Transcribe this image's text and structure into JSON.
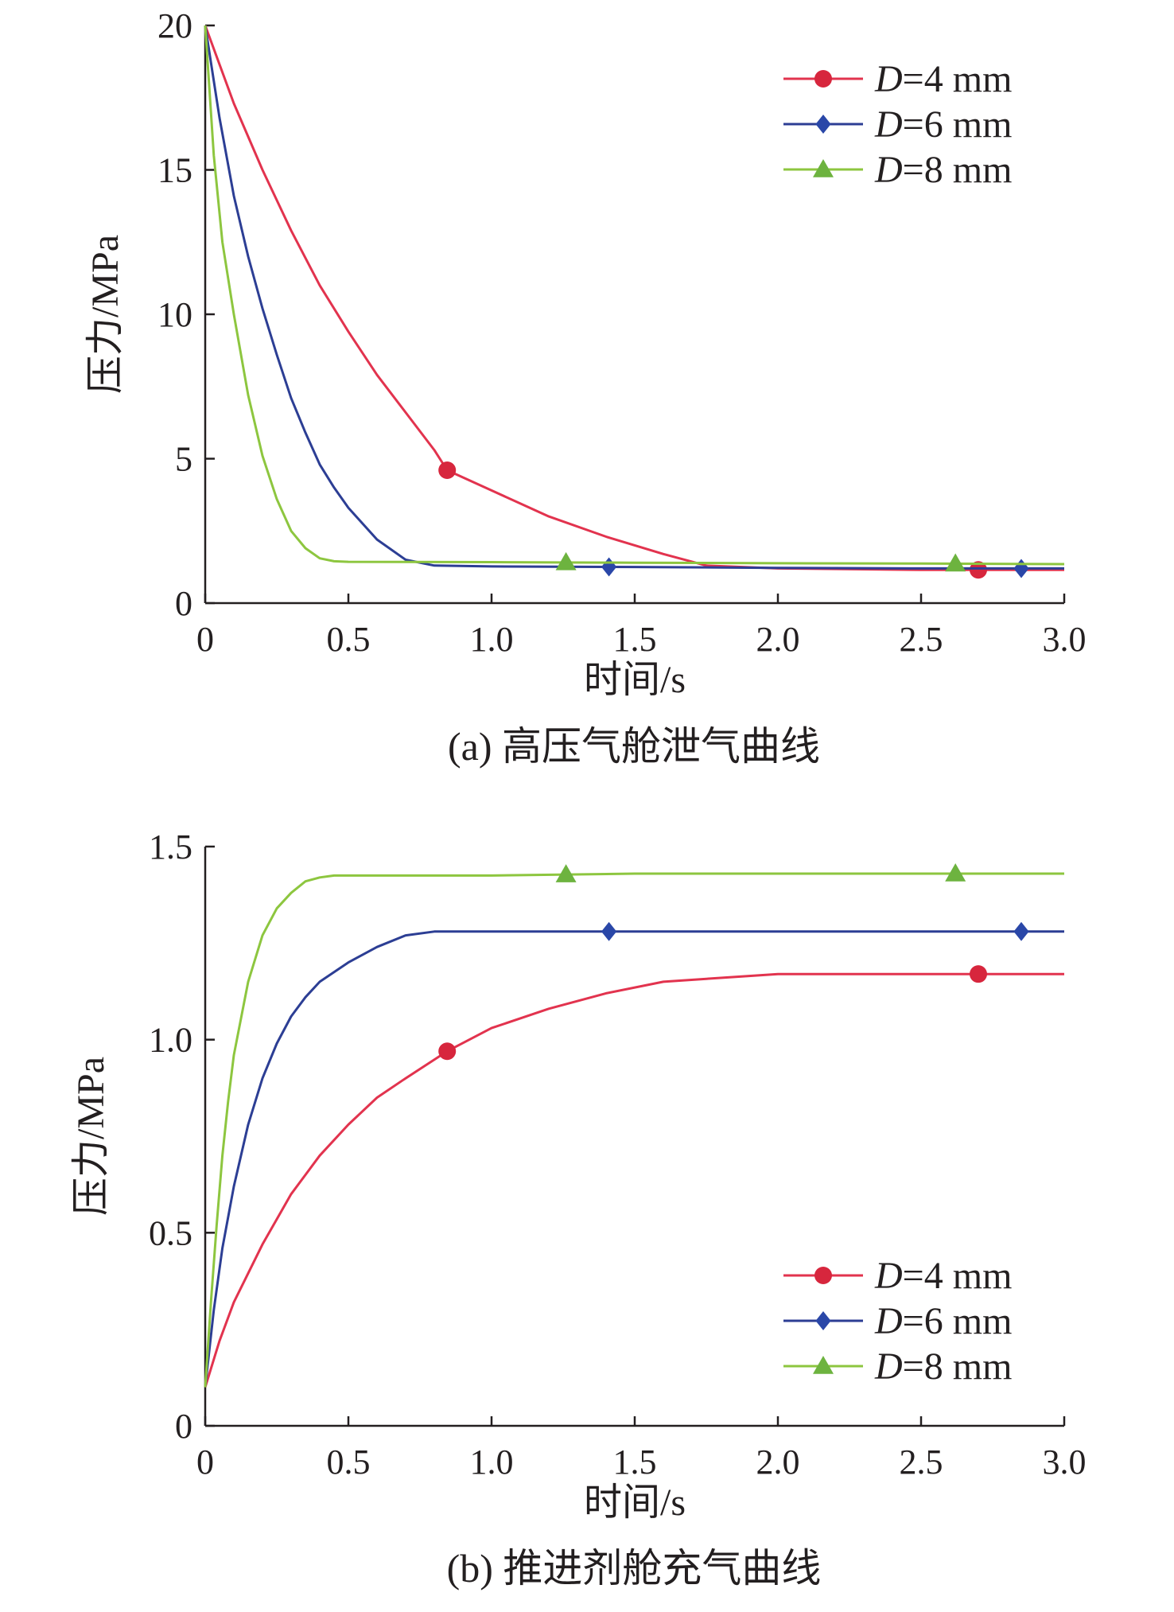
{
  "chart_data": [
    {
      "type": "line",
      "caption": "(a) 高压气舱泄气曲线",
      "xlabel": "时间/s",
      "ylabel": "压力/MPa",
      "xlim": [
        0,
        3.0
      ],
      "ylim": [
        0,
        20
      ],
      "xticks": [
        "0",
        "0.5",
        "1.0",
        "1.5",
        "2.0",
        "2.5",
        "3.0"
      ],
      "yticks": [
        "0",
        "5",
        "10",
        "15",
        "20"
      ],
      "grid": false,
      "legend_position": "top-right",
      "series": [
        {
          "name_italic": "D",
          "name_rest": "=4 mm",
          "color": "#e2334e",
          "marker": "circle",
          "marker_color": "#d7263d",
          "x": [
            0,
            0.1,
            0.2,
            0.3,
            0.4,
            0.5,
            0.6,
            0.7,
            0.8,
            0.845,
            1.0,
            1.2,
            1.4,
            1.6,
            1.75,
            2.0,
            2.5,
            3.0
          ],
          "y": [
            20,
            17.3,
            15.0,
            12.9,
            11.0,
            9.4,
            7.9,
            6.6,
            5.3,
            4.6,
            3.9,
            3.0,
            2.3,
            1.7,
            1.3,
            1.2,
            1.15,
            1.15
          ],
          "markers_x": [
            0.845,
            2.7
          ]
        },
        {
          "name_italic": "D",
          "name_rest": "=6 mm",
          "color": "#2c3e94",
          "marker": "diamond",
          "marker_color": "#2a47a8",
          "x": [
            0,
            0.05,
            0.1,
            0.15,
            0.2,
            0.25,
            0.3,
            0.35,
            0.4,
            0.45,
            0.5,
            0.6,
            0.7,
            0.8,
            1.0,
            1.5,
            2.0,
            2.5,
            3.0
          ],
          "y": [
            20,
            16.8,
            14.1,
            12.0,
            10.2,
            8.6,
            7.1,
            5.9,
            4.8,
            4.0,
            3.3,
            2.2,
            1.5,
            1.3,
            1.27,
            1.25,
            1.22,
            1.2,
            1.2
          ],
          "markers_x": [
            1.41,
            2.85
          ]
        },
        {
          "name_italic": "D",
          "name_rest": "=8 mm",
          "color": "#8dc63f",
          "marker": "triangle",
          "marker_color": "#6db33f",
          "x": [
            0,
            0.03,
            0.06,
            0.1,
            0.15,
            0.2,
            0.25,
            0.3,
            0.35,
            0.4,
            0.45,
            0.5,
            1.0,
            1.5,
            2.0,
            2.5,
            3.0
          ],
          "y": [
            20,
            15.5,
            12.5,
            10.0,
            7.2,
            5.1,
            3.6,
            2.5,
            1.9,
            1.55,
            1.45,
            1.43,
            1.42,
            1.4,
            1.38,
            1.37,
            1.35
          ],
          "markers_x": [
            1.26,
            2.62
          ]
        }
      ]
    },
    {
      "type": "line",
      "caption": "(b) 推进剂舱充气曲线",
      "xlabel": "时间/s",
      "ylabel": "压力/MPa",
      "xlim": [
        0,
        3.0
      ],
      "ylim": [
        0,
        1.5
      ],
      "xticks": [
        "0",
        "0.5",
        "1.0",
        "1.5",
        "2.0",
        "2.5",
        "3.0"
      ],
      "yticks": [
        "0",
        "0.5",
        "1.0",
        "1.5"
      ],
      "grid": false,
      "legend_position": "bottom-right",
      "series": [
        {
          "name_italic": "D",
          "name_rest": "=4 mm",
          "color": "#e2334e",
          "marker": "circle",
          "marker_color": "#d7263d",
          "x": [
            0,
            0.05,
            0.1,
            0.2,
            0.3,
            0.4,
            0.5,
            0.6,
            0.7,
            0.845,
            1.0,
            1.2,
            1.4,
            1.6,
            1.8,
            2.0,
            2.5,
            3.0
          ],
          "y": [
            0.1,
            0.22,
            0.32,
            0.47,
            0.6,
            0.7,
            0.78,
            0.85,
            0.9,
            0.97,
            1.03,
            1.08,
            1.12,
            1.15,
            1.16,
            1.17,
            1.17,
            1.17
          ],
          "markers_x": [
            0.845,
            2.7
          ]
        },
        {
          "name_italic": "D",
          "name_rest": "=6 mm",
          "color": "#2c3e94",
          "marker": "diamond",
          "marker_color": "#2a47a8",
          "x": [
            0,
            0.03,
            0.06,
            0.1,
            0.15,
            0.2,
            0.25,
            0.3,
            0.35,
            0.4,
            0.5,
            0.6,
            0.7,
            0.8,
            1.0,
            1.5,
            2.0,
            2.5,
            3.0
          ],
          "y": [
            0.1,
            0.3,
            0.46,
            0.62,
            0.78,
            0.9,
            0.99,
            1.06,
            1.11,
            1.15,
            1.2,
            1.24,
            1.27,
            1.28,
            1.28,
            1.28,
            1.28,
            1.28,
            1.28
          ],
          "markers_x": [
            1.41,
            2.85
          ]
        },
        {
          "name_italic": "D",
          "name_rest": "=8 mm",
          "color": "#8dc63f",
          "marker": "triangle",
          "marker_color": "#6db33f",
          "x": [
            0,
            0.02,
            0.04,
            0.06,
            0.08,
            0.1,
            0.15,
            0.2,
            0.25,
            0.3,
            0.35,
            0.4,
            0.45,
            0.5,
            1.0,
            1.5,
            2.0,
            2.5,
            3.0
          ],
          "y": [
            0.1,
            0.32,
            0.52,
            0.7,
            0.84,
            0.96,
            1.15,
            1.27,
            1.34,
            1.38,
            1.41,
            1.42,
            1.425,
            1.425,
            1.425,
            1.43,
            1.43,
            1.43,
            1.43
          ],
          "markers_x": [
            1.26,
            2.62
          ]
        }
      ]
    }
  ]
}
